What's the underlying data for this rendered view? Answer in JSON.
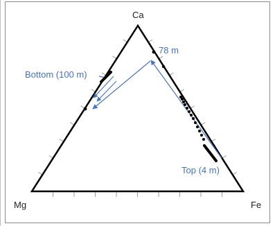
{
  "diagram": {
    "vertices": {
      "top": "Ca",
      "left": "Mg",
      "right": "Fe"
    },
    "annotations": {
      "top_label": "78 m",
      "bottom_label": "Bottom (100 m)",
      "surface_label": "Top (4 m)"
    },
    "colors": {
      "axis": "#000000",
      "tick": "#9e9e9e",
      "arrow": "#4472c4",
      "points": "#000000",
      "text_dark": "#1f1f1f",
      "text_blue": "#4472c4"
    }
  }
}
